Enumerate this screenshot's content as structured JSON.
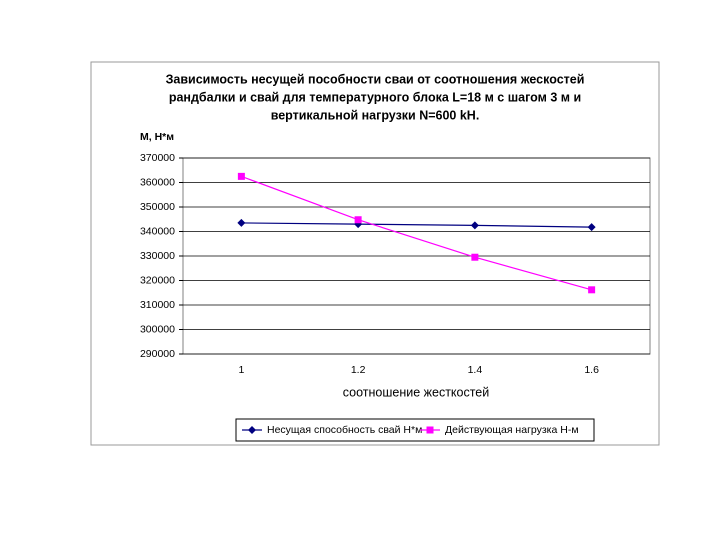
{
  "chart_data": {
    "type": "line",
    "title": [
      "Зависимость несущей пособности сваи от соотношения жескостей",
      "рандбалки и свай для температурного блока L=18 м с шагом 3 м и",
      "вертикальной нагрузки N=600 kH."
    ],
    "y_label": "М, Н*м",
    "x_label": "соотношение жесткостей",
    "categories": [
      "1",
      "1.2",
      "1.4",
      "1.6"
    ],
    "series": [
      {
        "name": "Несущая способность свай Н*м",
        "color": "#000080",
        "marker": "diamond",
        "values": [
          343500,
          343000,
          342500,
          341800
        ]
      },
      {
        "name": "Действующая нагрузка Н-м",
        "color": "#ff00ff",
        "marker": "square",
        "values": [
          362500,
          344800,
          329500,
          316200
        ]
      }
    ],
    "ylim": [
      290000,
      370000
    ],
    "yticks": [
      290000,
      300000,
      310000,
      320000,
      330000,
      340000,
      350000,
      360000,
      370000
    ],
    "grid": true,
    "legend": "bottom"
  }
}
